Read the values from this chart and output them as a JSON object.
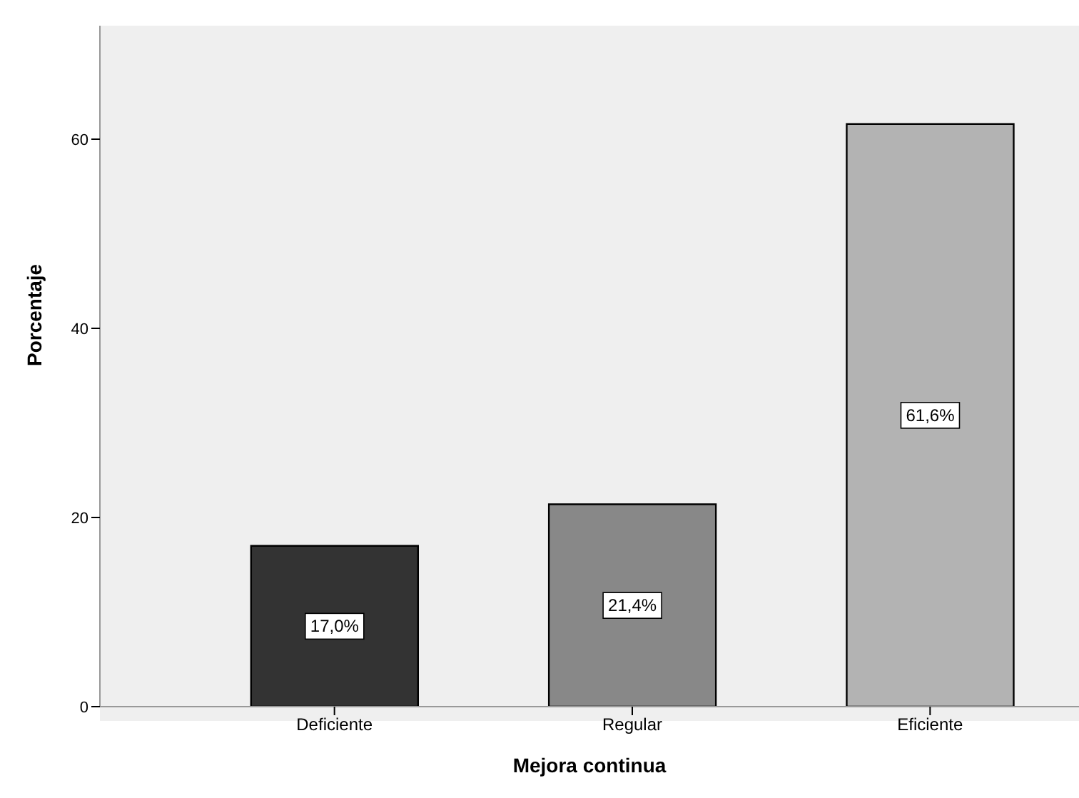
{
  "chart_data": {
    "type": "bar",
    "xlabel": "Mejora continua",
    "ylabel": "Porcentaje",
    "categories": [
      "Deficiente",
      "Regular",
      "Eficiente"
    ],
    "values": [
      17.0,
      21.4,
      61.6
    ],
    "colors": [
      "#333333",
      "#888888",
      "#b3b3b3"
    ],
    "value_labels": [
      "17,0%",
      "21,4%",
      "61,6%"
    ],
    "ylim": [
      0,
      72
    ],
    "yticks": [
      0,
      20,
      40,
      60
    ],
    "grid": false,
    "legend": false
  }
}
